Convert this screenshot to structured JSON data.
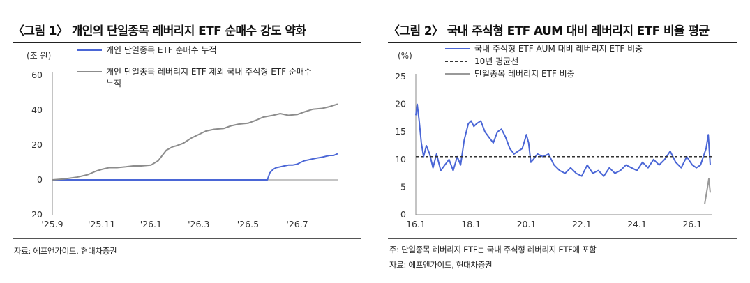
{
  "charts": [
    {
      "title": "〈그림 1〉 개인의 단일종목 레버리지 ETF 순매수 강도 약화",
      "unit_label": "(조 원)",
      "source": "자료: 에프앤가이드, 현대차증권",
      "note": ""
    },
    {
      "title": "〈그림 2〉 국내 주식형 ETF AUM 대비 레버리지 ETF 비율 평균",
      "unit_label": "(%)",
      "source": "자료: 에프앤가이드, 현대차증권",
      "note": "주: 단일종목 레버리지 ETF는 국내 주식형 레버리지 ETF에 포함"
    }
  ],
  "chart_data": [
    {
      "type": "line",
      "title": "〈그림 1〉 개인의 단일종목 레버리지 ETF 순매수 강도 약화",
      "ylabel": "(조 원)",
      "ylim": [
        -20,
        60
      ],
      "yticks": [
        -20,
        0,
        20,
        40,
        60
      ],
      "x_ticks": [
        "'25.9",
        "'25.11",
        "'26.1",
        "'26.3",
        "'26.5",
        "'26.7"
      ],
      "x_domain": [
        "2025-09-01",
        "2026-08-20"
      ],
      "grid": false,
      "legend_position": "top",
      "series": [
        {
          "name": "개인 단일종목 ETF 순매수 누적",
          "color": "#4a66d6",
          "x": [
            "2025-09-01",
            "2026-05-25",
            "2026-05-28",
            "2026-06-01",
            "2026-06-05",
            "2026-06-10",
            "2026-06-15",
            "2026-06-20",
            "2026-06-25",
            "2026-07-01",
            "2026-07-05",
            "2026-07-10",
            "2026-07-15",
            "2026-07-20",
            "2026-07-25",
            "2026-08-01",
            "2026-08-05",
            "2026-08-10",
            "2026-08-15",
            "2026-08-20"
          ],
          "values": [
            0,
            0,
            4,
            6,
            7,
            7.5,
            8,
            8.5,
            8.5,
            9,
            10,
            11,
            11.5,
            12,
            12.5,
            13,
            13.5,
            14,
            14,
            15
          ]
        },
        {
          "name": "개인 단일종목 레버리지 ETF 제외 국내 주식형 ETF 순매수 누적",
          "color": "#8c8c8c",
          "x": [
            "2025-09-01",
            "2025-09-15",
            "2025-10-01",
            "2025-10-15",
            "2025-10-25",
            "2025-11-01",
            "2025-11-10",
            "2025-11-20",
            "2025-12-01",
            "2025-12-10",
            "2025-12-20",
            "2026-01-01",
            "2026-01-10",
            "2026-01-20",
            "2026-01-28",
            "2026-02-01",
            "2026-02-10",
            "2026-02-20",
            "2026-03-01",
            "2026-03-10",
            "2026-03-20",
            "2026-04-01",
            "2026-04-10",
            "2026-04-20",
            "2026-05-01",
            "2026-05-10",
            "2026-05-20",
            "2026-06-01",
            "2026-06-10",
            "2026-06-20",
            "2026-07-01",
            "2026-07-10",
            "2026-07-20",
            "2026-08-01",
            "2026-08-10",
            "2026-08-20"
          ],
          "values": [
            0,
            0.5,
            1.5,
            3,
            5,
            6,
            7,
            7,
            7.5,
            8,
            8,
            8.5,
            11,
            17,
            19,
            19.5,
            21,
            24,
            26,
            28,
            29,
            29.5,
            31,
            32,
            32.5,
            34,
            36,
            37,
            38,
            37,
            37.5,
            39,
            40.5,
            41,
            42,
            43.5
          ]
        }
      ]
    },
    {
      "type": "line",
      "title": "〈그림 2〉 국내 주식형 ETF AUM 대비 레버리지 ETF 비율 평균",
      "ylabel": "(%)",
      "ylim": [
        0,
        25
      ],
      "yticks": [
        0,
        5,
        10,
        15,
        20,
        25
      ],
      "x_ticks": [
        "16.1",
        "18.1",
        "20.1",
        "22.1",
        "24.1",
        "26.1"
      ],
      "x_domain": [
        2016.0,
        2026.7
      ],
      "grid": false,
      "legend_position": "top",
      "series": [
        {
          "name": "국내 주식형 ETF AUM 대비 레버리지 ETF 비중",
          "color": "#4a66d6",
          "x": [
            2016.0,
            2016.05,
            2016.12,
            2016.2,
            2016.28,
            2016.38,
            2016.5,
            2016.62,
            2016.75,
            2016.9,
            2017.05,
            2017.2,
            2017.35,
            2017.5,
            2017.62,
            2017.75,
            2017.9,
            2018.0,
            2018.1,
            2018.2,
            2018.35,
            2018.5,
            2018.65,
            2018.8,
            2018.95,
            2019.1,
            2019.25,
            2019.4,
            2019.55,
            2019.7,
            2019.85,
            2020.0,
            2020.08,
            2020.16,
            2020.25,
            2020.4,
            2020.6,
            2020.8,
            2021.0,
            2021.2,
            2021.4,
            2021.6,
            2021.8,
            2022.0,
            2022.2,
            2022.4,
            2022.6,
            2022.8,
            2023.0,
            2023.2,
            2023.4,
            2023.6,
            2023.8,
            2024.0,
            2024.2,
            2024.4,
            2024.6,
            2024.8,
            2025.0,
            2025.2,
            2025.4,
            2025.6,
            2025.8,
            2026.0,
            2026.15,
            2026.3,
            2026.4,
            2026.5,
            2026.58,
            2026.65
          ],
          "values": [
            18,
            20,
            17,
            13,
            10.5,
            12.5,
            11,
            8.5,
            11,
            8,
            9,
            10,
            8,
            10.5,
            9,
            13.5,
            16.5,
            17,
            16,
            16.5,
            17,
            15,
            14,
            13,
            15,
            15.5,
            14,
            12,
            11,
            11.5,
            12,
            14.5,
            13,
            9.5,
            10,
            11,
            10.5,
            11,
            9,
            8,
            7.5,
            8.5,
            7.5,
            7,
            9,
            7.5,
            8,
            7,
            8.5,
            7.5,
            8,
            9,
            8.5,
            8,
            9.5,
            8.5,
            10,
            9,
            10,
            11.5,
            9.5,
            8.5,
            10.5,
            9,
            8.5,
            9,
            10.5,
            12,
            14.5,
            9
          ]
        },
        {
          "name": "10년 평균선",
          "color": "#333333",
          "dashed": true,
          "x": [
            2016.0,
            2026.7
          ],
          "values": [
            10.5,
            10.5
          ]
        },
        {
          "name": "단일종목 레버리지 ETF 비중",
          "color": "#999999",
          "x": [
            2026.45,
            2026.5,
            2026.55,
            2026.6,
            2026.65
          ],
          "values": [
            2,
            3.5,
            5,
            6.5,
            4
          ]
        }
      ]
    }
  ]
}
